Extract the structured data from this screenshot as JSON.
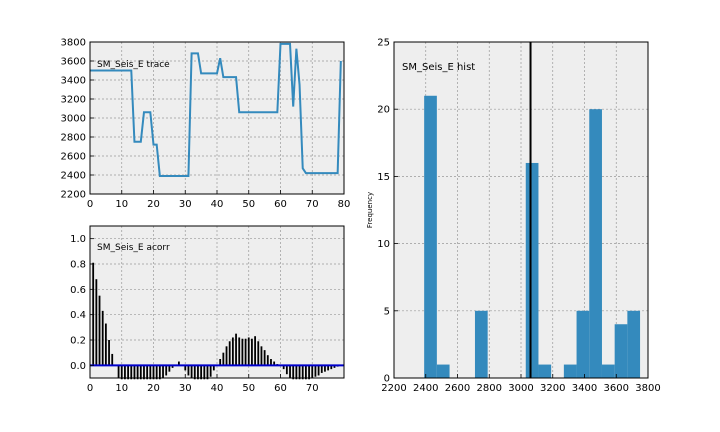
{
  "colors": {
    "panel_bg": "#eeeeee",
    "grid": "#999999",
    "trace_line": "#348abd",
    "hist_bar": "#348abd",
    "acorr_bar": "#000000",
    "acorr_baseline": "#0000cc",
    "mean_line": "#000000"
  },
  "chart_data": [
    {
      "type": "line",
      "label": "SM_Seis_E trace",
      "xlim": [
        0,
        80
      ],
      "ylim": [
        2200,
        3800
      ],
      "xticks": [
        0,
        10,
        20,
        30,
        40,
        50,
        60,
        70,
        80
      ],
      "yticks": [
        2200,
        2400,
        2600,
        2800,
        3000,
        3200,
        3400,
        3600,
        3800
      ],
      "grid": true,
      "series": [
        {
          "x": [
            0,
            1,
            2,
            3,
            4,
            5,
            6,
            7,
            8,
            9,
            10,
            11,
            12,
            13,
            14,
            15,
            16,
            17,
            18,
            19,
            20,
            21,
            22,
            23,
            24,
            25,
            26,
            27,
            28,
            29,
            30,
            31,
            32,
            33,
            34,
            35,
            36,
            37,
            38,
            39,
            40,
            41,
            42,
            43,
            44,
            45,
            46,
            47,
            48,
            49,
            50,
            51,
            52,
            53,
            54,
            55,
            56,
            57,
            58,
            59,
            60,
            61,
            62,
            63,
            64,
            65,
            66,
            67,
            68,
            69,
            70,
            71,
            72,
            73,
            74,
            75,
            76,
            77,
            78,
            79
          ],
          "y": [
            3500,
            3500,
            3500,
            3500,
            3500,
            3500,
            3500,
            3500,
            3500,
            3500,
            3500,
            3500,
            3500,
            3500,
            2750,
            2750,
            2750,
            3060,
            3060,
            3060,
            2720,
            2720,
            2390,
            2390,
            2390,
            2390,
            2390,
            2390,
            2390,
            2390,
            2390,
            2390,
            3680,
            3680,
            3680,
            3470,
            3470,
            3470,
            3470,
            3470,
            3470,
            3630,
            3430,
            3430,
            3430,
            3430,
            3430,
            3060,
            3060,
            3060,
            3060,
            3060,
            3060,
            3060,
            3060,
            3060,
            3060,
            3060,
            3060,
            3060,
            3780,
            3780,
            3780,
            3780,
            3120,
            3730,
            3350,
            2470,
            2420,
            2420,
            2420,
            2420,
            2420,
            2420,
            2420,
            2420,
            2420,
            2420,
            2420,
            3600
          ]
        }
      ]
    },
    {
      "type": "bar",
      "label": "SM_Seis_E acorr",
      "xlim": [
        0,
        80
      ],
      "ylim": [
        -0.1,
        1.1
      ],
      "xticks": [
        0,
        10,
        20,
        30,
        40,
        50,
        60,
        70
      ],
      "yticks": [
        "0.0",
        "0.2",
        "0.4",
        "0.6",
        "0.8",
        "1.0"
      ],
      "grid": true,
      "lags": [
        1,
        2,
        3,
        4,
        5,
        6,
        7,
        8,
        9,
        10,
        11,
        12,
        13,
        14,
        15,
        16,
        17,
        18,
        19,
        20,
        21,
        22,
        23,
        24,
        25,
        26,
        27,
        28,
        29,
        30,
        31,
        32,
        33,
        34,
        35,
        36,
        37,
        38,
        39,
        40,
        41,
        42,
        43,
        44,
        45,
        46,
        47,
        48,
        49,
        50,
        51,
        52,
        53,
        54,
        55,
        56,
        57,
        58,
        59,
        60,
        61,
        62,
        63,
        64,
        65,
        66,
        67,
        68,
        69,
        70,
        71,
        72,
        73,
        74,
        75,
        76,
        77,
        78
      ],
      "values": [
        0.81,
        0.68,
        0.55,
        0.43,
        0.33,
        0.2,
        0.09,
        0.0,
        -0.1,
        -0.11,
        -0.11,
        -0.11,
        -0.11,
        -0.11,
        -0.11,
        -0.11,
        -0.11,
        -0.11,
        -0.11,
        -0.11,
        -0.11,
        -0.11,
        -0.1,
        -0.08,
        -0.05,
        -0.02,
        0.0,
        0.03,
        0.0,
        -0.04,
        -0.08,
        -0.1,
        -0.11,
        -0.11,
        -0.11,
        -0.11,
        -0.11,
        -0.09,
        -0.04,
        0.0,
        0.05,
        0.1,
        0.15,
        0.19,
        0.22,
        0.25,
        0.22,
        0.21,
        0.21,
        0.22,
        0.21,
        0.23,
        0.19,
        0.15,
        0.12,
        0.08,
        0.05,
        0.03,
        0.01,
        0.0,
        -0.03,
        -0.07,
        -0.1,
        -0.11,
        -0.11,
        -0.11,
        -0.11,
        -0.11,
        -0.11,
        -0.1,
        -0.09,
        -0.08,
        -0.06,
        -0.05,
        -0.04,
        -0.03,
        -0.02,
        -0.01
      ]
    },
    {
      "type": "bar",
      "label": "SM_Seis_E hist",
      "ylabel": "Frequency",
      "xlim": [
        2200,
        3800
      ],
      "ylim": [
        0,
        25
      ],
      "xticks": [
        2200,
        2400,
        2600,
        2800,
        3000,
        3200,
        3400,
        3600,
        3800
      ],
      "yticks": [
        0,
        5,
        10,
        15,
        20,
        25
      ],
      "grid": true,
      "bin_edges": [
        2390,
        2470,
        2550,
        2630,
        2710,
        2790,
        2870,
        2950,
        3030,
        3110,
        3190,
        3270,
        3350,
        3430,
        3510,
        3590,
        3670,
        3750
      ],
      "counts": [
        21,
        1,
        0,
        0,
        5,
        0,
        0,
        0,
        16,
        1,
        0,
        1,
        5,
        20,
        1,
        4,
        5
      ],
      "mean_line": 3060
    }
  ]
}
